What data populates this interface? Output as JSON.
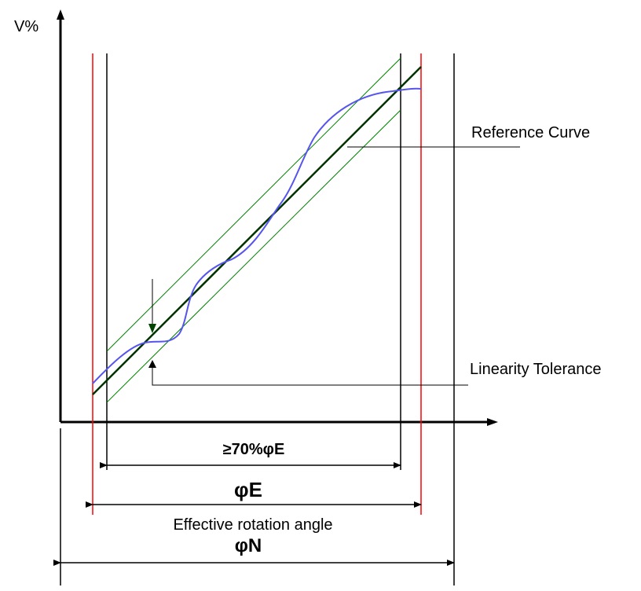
{
  "axes": {
    "y_label": "V%"
  },
  "labels": {
    "reference_curve": "Reference Curve",
    "linearity_tolerance": "Linearity Tolerance",
    "seventy_percent": "≥70%φE",
    "phi_e": "φE",
    "effective_rotation": "Effective rotation angle",
    "phi_n": "φN"
  },
  "colors": {
    "axis": "#000000",
    "red_limit": "#ff0000",
    "reference_line": "#003300",
    "tolerance_band": "#008000",
    "measured_curve": "#5555ee",
    "tolerance_arrow": "#004400"
  }
}
